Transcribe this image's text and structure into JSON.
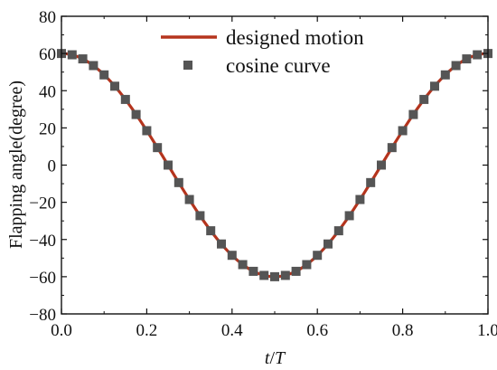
{
  "chart_data": {
    "type": "line",
    "xlabel_italic_parts": [
      "t",
      "/",
      "T"
    ],
    "ylabel": "Flapping angle(degree)",
    "xlim": [
      0.0,
      1.0
    ],
    "ylim": [
      -80,
      80
    ],
    "x_ticks": [
      "0.0",
      "0.2",
      "0.4",
      "0.6",
      "0.8",
      "1.0"
    ],
    "y_ticks": [
      "80",
      "60",
      "40",
      "20",
      "0",
      "−20",
      "−40",
      "−60",
      "−80"
    ],
    "grid": false,
    "legend_position": "top-center",
    "series": [
      {
        "name": "designed motion",
        "style": "line",
        "color": "#b5341d",
        "function": "60*cos(2*pi*x)",
        "x": [
          0.0,
          0.05,
          0.1,
          0.15,
          0.2,
          0.25,
          0.3,
          0.35,
          0.4,
          0.45,
          0.5,
          0.55,
          0.6,
          0.65,
          0.7,
          0.75,
          0.8,
          0.85,
          0.9,
          0.95,
          1.0
        ],
        "values": [
          60,
          57.1,
          48.5,
          35.3,
          18.5,
          0,
          -18.5,
          -35.3,
          -48.5,
          -57.1,
          -60,
          -57.1,
          -48.5,
          -35.3,
          -18.5,
          0,
          18.5,
          35.3,
          48.5,
          57.1,
          60
        ]
      },
      {
        "name": "cosine curve",
        "style": "markers",
        "color": "#555555",
        "marker": "square",
        "x": [
          0.0,
          0.025,
          0.05,
          0.075,
          0.1,
          0.125,
          0.15,
          0.175,
          0.2,
          0.225,
          0.25,
          0.275,
          0.3,
          0.325,
          0.35,
          0.375,
          0.4,
          0.425,
          0.45,
          0.475,
          0.5,
          0.525,
          0.55,
          0.575,
          0.6,
          0.625,
          0.65,
          0.675,
          0.7,
          0.725,
          0.75,
          0.775,
          0.8,
          0.825,
          0.85,
          0.875,
          0.9,
          0.925,
          0.95,
          0.975,
          1.0
        ],
        "values": [
          60,
          59.3,
          57.1,
          53.5,
          48.5,
          42.4,
          35.3,
          27.2,
          18.5,
          9.4,
          0,
          -9.4,
          -18.5,
          -27.2,
          -35.3,
          -42.4,
          -48.5,
          -53.5,
          -57.1,
          -59.3,
          -60,
          -59.3,
          -57.1,
          -53.5,
          -48.5,
          -42.4,
          -35.3,
          -27.2,
          -18.5,
          -9.4,
          0,
          9.4,
          18.5,
          27.2,
          35.3,
          42.4,
          48.5,
          53.5,
          57.1,
          59.3,
          60
        ]
      }
    ]
  }
}
